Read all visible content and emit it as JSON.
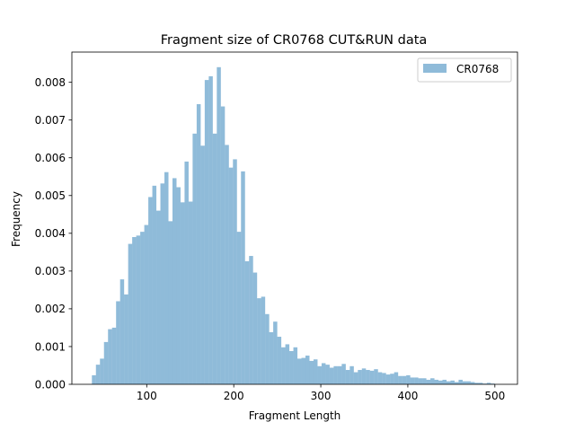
{
  "chart_data": {
    "type": "bar",
    "title": "Fragment size of CR0768 CUT&RUN data",
    "xlabel": "Fragment Length",
    "ylabel": "Frequency",
    "xlim": [
      14,
      526
    ],
    "ylim": [
      0,
      0.0088
    ],
    "xticks": [
      100,
      200,
      300,
      400,
      500
    ],
    "xtick_labels": [
      "100",
      "200",
      "300",
      "400",
      "500"
    ],
    "yticks": [
      0,
      0.001,
      0.002,
      0.003,
      0.004,
      0.005,
      0.006,
      0.007,
      0.008
    ],
    "ytick_labels": [
      "0.000",
      "0.001",
      "0.002",
      "0.003",
      "0.004",
      "0.005",
      "0.006",
      "0.007",
      "0.008"
    ],
    "bar_color": "#1f77b4",
    "bar_alpha": 0.5,
    "legend": {
      "position": "top-right",
      "entries": [
        "CR0768"
      ]
    },
    "bin_start": 37,
    "bin_width": 4.63,
    "series": [
      {
        "name": "CR0768",
        "values": [
          0.00024,
          0.00052,
          0.00068,
          0.00112,
          0.00146,
          0.0015,
          0.0022,
          0.00278,
          0.00238,
          0.00372,
          0.0039,
          0.00394,
          0.00404,
          0.00422,
          0.00496,
          0.00526,
          0.0046,
          0.00532,
          0.00562,
          0.00432,
          0.00546,
          0.00522,
          0.00482,
          0.0059,
          0.00484,
          0.00664,
          0.00742,
          0.00632,
          0.00806,
          0.00816,
          0.00664,
          0.0084,
          0.00736,
          0.00634,
          0.00574,
          0.00596,
          0.00404,
          0.00564,
          0.00326,
          0.0034,
          0.00296,
          0.00228,
          0.00232,
          0.00186,
          0.00138,
          0.00166,
          0.00126,
          0.00098,
          0.00106,
          0.00088,
          0.00098,
          0.00068,
          0.0007,
          0.00076,
          0.00062,
          0.00066,
          0.00048,
          0.00056,
          0.00052,
          0.00044,
          0.00048,
          0.00048,
          0.00054,
          0.00038,
          0.00048,
          0.00032,
          0.00038,
          0.00042,
          0.00038,
          0.00036,
          0.0004,
          0.00032,
          0.0003,
          0.00026,
          0.00028,
          0.00032,
          0.00022,
          0.00022,
          0.00024,
          0.00018,
          0.00018,
          0.00016,
          0.00016,
          0.00012,
          0.00016,
          0.00012,
          0.0001,
          0.00012,
          8e-05,
          0.0001,
          6e-05,
          0.00012,
          8e-05,
          8e-05,
          6e-05,
          4e-05,
          4e-05,
          2e-05,
          4e-05,
          2e-05
        ]
      }
    ]
  }
}
